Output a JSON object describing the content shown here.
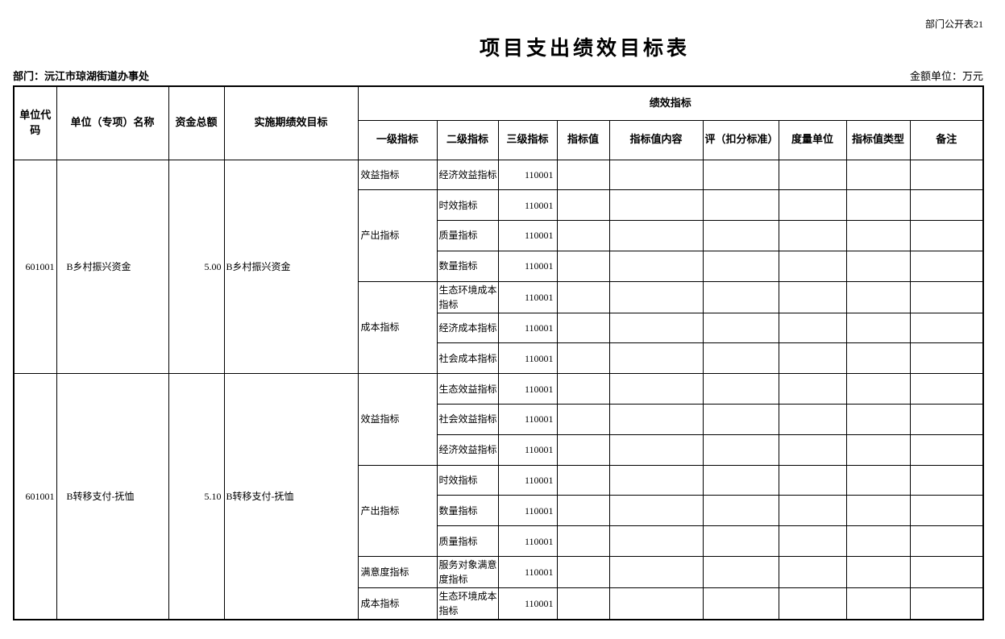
{
  "page": {
    "sheet_label": "部门公开表21",
    "title": "项目支出绩效目标表",
    "department": "部门：沅江市琼湖街道办事处",
    "amount_unit": "金额单位：万元"
  },
  "table": {
    "headers": {
      "unit_code": "单位代码",
      "unit_name": "单位（专项）名称",
      "total_funds": "资金总额",
      "period_goal": "实施期绩效目标",
      "perf_group": "绩效指标",
      "sub": [
        "一级指标",
        "二级指标",
        "三级指标",
        "指标值",
        "指标值内容",
        "评（扣分标准）",
        "度量单位",
        "指标值类型",
        "备注"
      ]
    },
    "projects": [
      {
        "unit_code": "601001",
        "unit_name": "B乡村振兴资金",
        "total_funds": "5.00",
        "period_goal": "B乡村振兴资金",
        "groups": [
          {
            "level1": "效益指标",
            "rows": [
              {
                "level2": "经济效益指标",
                "level3": "110001"
              }
            ]
          },
          {
            "level1": "产出指标",
            "rows": [
              {
                "level2": "时效指标",
                "level3": "110001"
              },
              {
                "level2": "质量指标",
                "level3": "110001"
              },
              {
                "level2": "数量指标",
                "level3": "110001"
              }
            ]
          },
          {
            "level1": "成本指标",
            "rows": [
              {
                "level2": "生态环境成本指标",
                "level3": "110001"
              },
              {
                "level2": "经济成本指标",
                "level3": "110001"
              },
              {
                "level2": "社会成本指标",
                "level3": "110001"
              }
            ]
          }
        ]
      },
      {
        "unit_code": "601001",
        "unit_name": "B转移支付-抚恤",
        "total_funds": "5.10",
        "period_goal": "B转移支付-抚恤",
        "groups": [
          {
            "level1": "效益指标",
            "rows": [
              {
                "level2": "生态效益指标",
                "level3": "110001"
              },
              {
                "level2": "社会效益指标",
                "level3": "110001"
              },
              {
                "level2": "经济效益指标",
                "level3": "110001"
              }
            ]
          },
          {
            "level1": "产出指标",
            "rows": [
              {
                "level2": "时效指标",
                "level3": "110001"
              },
              {
                "level2": "数量指标",
                "level3": "110001"
              },
              {
                "level2": "质量指标",
                "level3": "110001"
              }
            ]
          },
          {
            "level1": "满意度指标",
            "rows": [
              {
                "level2": "服务对象满意度指标",
                "level3": "110001"
              }
            ]
          },
          {
            "level1": "成本指标",
            "rows": [
              {
                "level2": "生态环境成本指标",
                "level3": "110001"
              }
            ]
          }
        ]
      }
    ]
  }
}
